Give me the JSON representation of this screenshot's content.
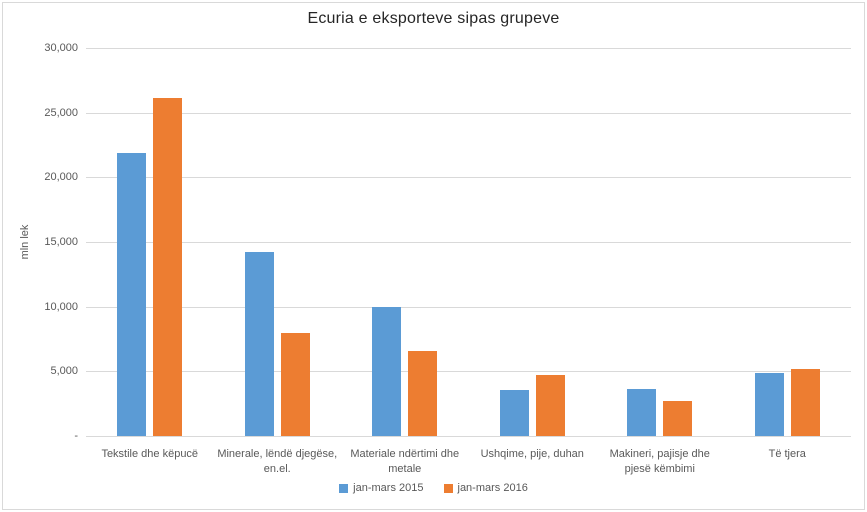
{
  "chart": {
    "title": "Ecuria e eksporteve sipas grupeve",
    "y_axis_label": "mln lek"
  },
  "chart_data": {
    "type": "bar",
    "title": "Ecuria e eksporteve sipas grupeve",
    "xlabel": "",
    "ylabel": "mln lek",
    "categories": [
      "Tekstile dhe këpucë",
      "Minerale, lëndë djegëse, en.el.",
      "Materiale ndërtimi dhe metale",
      "Ushqime, pije, duhan",
      "Makineri, pajisje dhe pjesë këmbimi",
      "Të tjera"
    ],
    "series": [
      {
        "name": "jan-mars 2015",
        "color": "#5B9BD5",
        "values": [
          21900,
          14250,
          10000,
          3550,
          3650,
          4850
        ]
      },
      {
        "name": "jan-mars 2016",
        "color": "#ED7D31",
        "values": [
          26100,
          8000,
          6550,
          4700,
          2700,
          5150
        ]
      }
    ],
    "ylim": [
      0,
      30000
    ],
    "ytick_step": 5000,
    "ytick_labels": [
      "-",
      "5,000",
      "10,000",
      "15,000",
      "20,000",
      "25,000",
      "30,000"
    ],
    "grid": true,
    "legend_position": "bottom"
  },
  "colors": {
    "grid": "#d9d9d9",
    "border": "#d9d9d9",
    "axis_text": "#595959",
    "title_text": "#262626",
    "series_2015": "#5B9BD5",
    "series_2016": "#ED7D31"
  }
}
